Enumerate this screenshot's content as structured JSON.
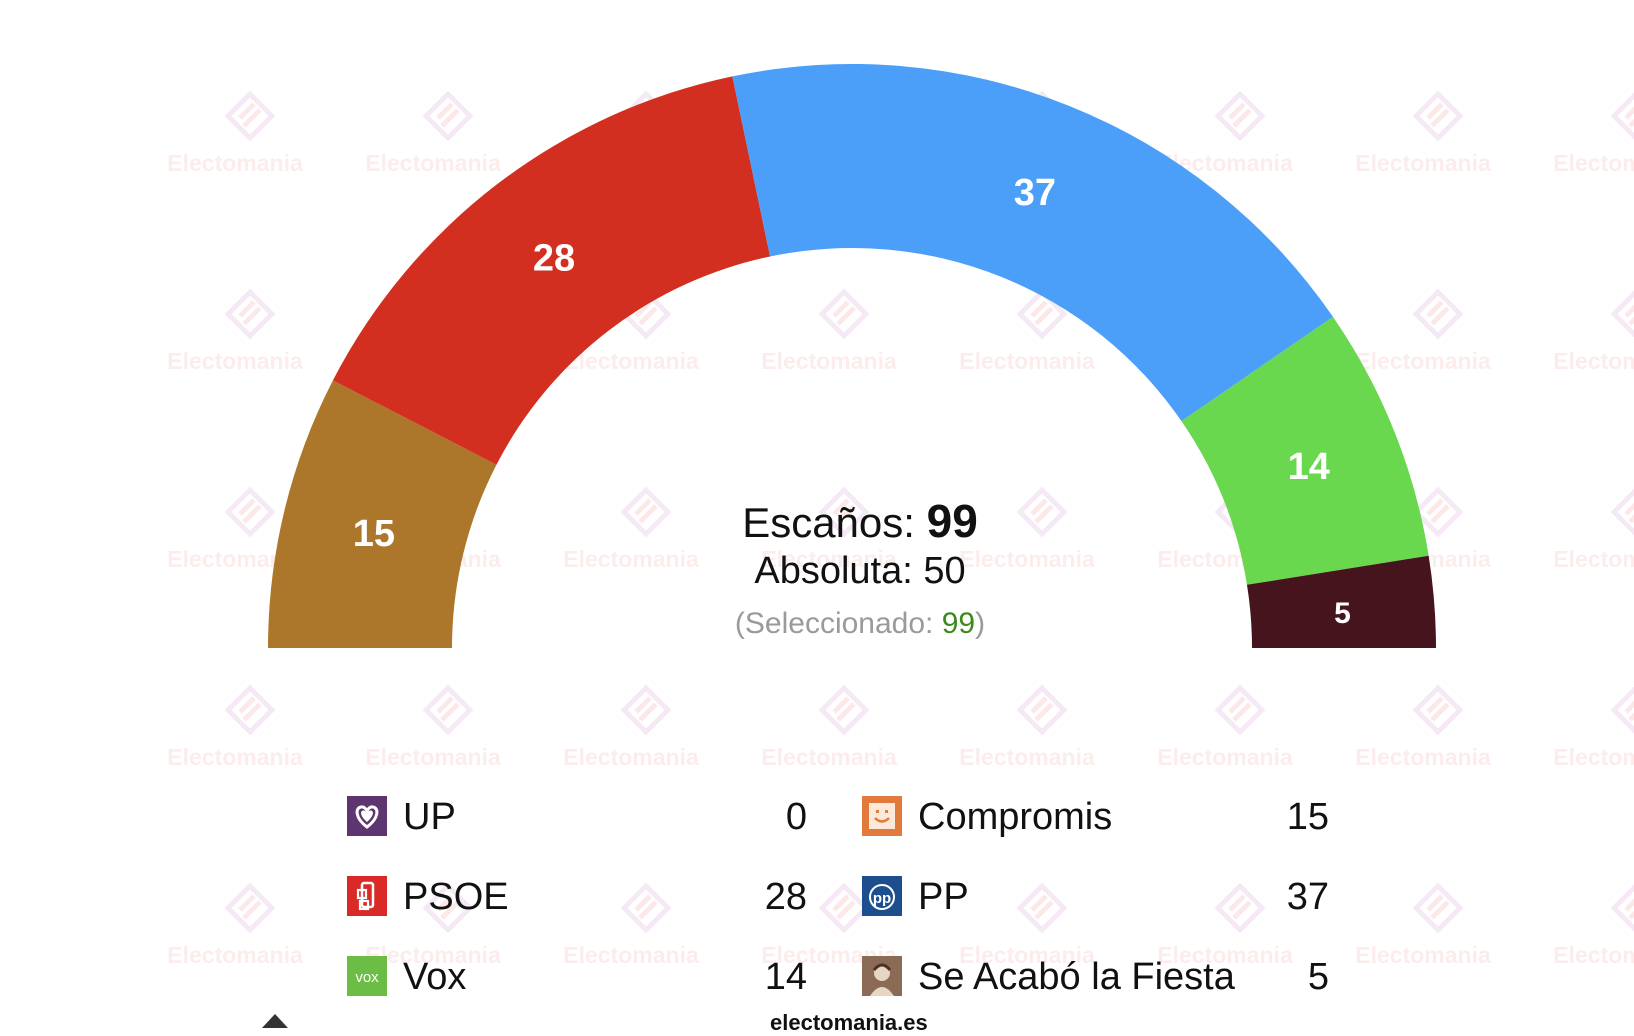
{
  "chart_data": {
    "type": "pie",
    "subtype": "parliament-hemicycle",
    "series": [
      {
        "name": "Compromis",
        "value": 15,
        "color": "#ac772b"
      },
      {
        "name": "PSOE",
        "value": 28,
        "color": "#d22f20"
      },
      {
        "name": "PP",
        "value": 37,
        "color": "#4b9ff8"
      },
      {
        "name": "Vox",
        "value": 14,
        "color": "#69d84f"
      },
      {
        "name": "Se Acabó la Fiesta",
        "value": 5,
        "color": "#46141d"
      }
    ],
    "total_seats": 99,
    "majority": 50,
    "selected": 99
  },
  "summary": {
    "seats_label": "Escaños:",
    "seats_value": "99",
    "majority_label": "Absoluta:",
    "majority_value": "50",
    "selected_prefix": "(Seleccionado:",
    "selected_value": "99",
    "selected_suffix": ")"
  },
  "legend": [
    {
      "name": "UP",
      "value": "0",
      "icon": "up-heart-icon",
      "color": "#5d3570"
    },
    {
      "name": "Compromis",
      "value": "15",
      "icon": "compromis-face-icon",
      "color": "#e27a3c"
    },
    {
      "name": "PSOE",
      "value": "28",
      "icon": "psoe-rose-icon",
      "color": "#d92a27"
    },
    {
      "name": "PP",
      "value": "37",
      "icon": "pp-logo-icon",
      "color": "#1d4f8f"
    },
    {
      "name": "Vox",
      "value": "14",
      "icon": "vox-logo-icon",
      "color": "#6cbd45"
    },
    {
      "name": "Se Acabó la Fiesta",
      "value": "5",
      "icon": "salf-portrait-icon",
      "color": "#8b6b55"
    }
  ],
  "watermark": {
    "text": "Electomania"
  },
  "footer": {
    "site": "electomania.es"
  }
}
